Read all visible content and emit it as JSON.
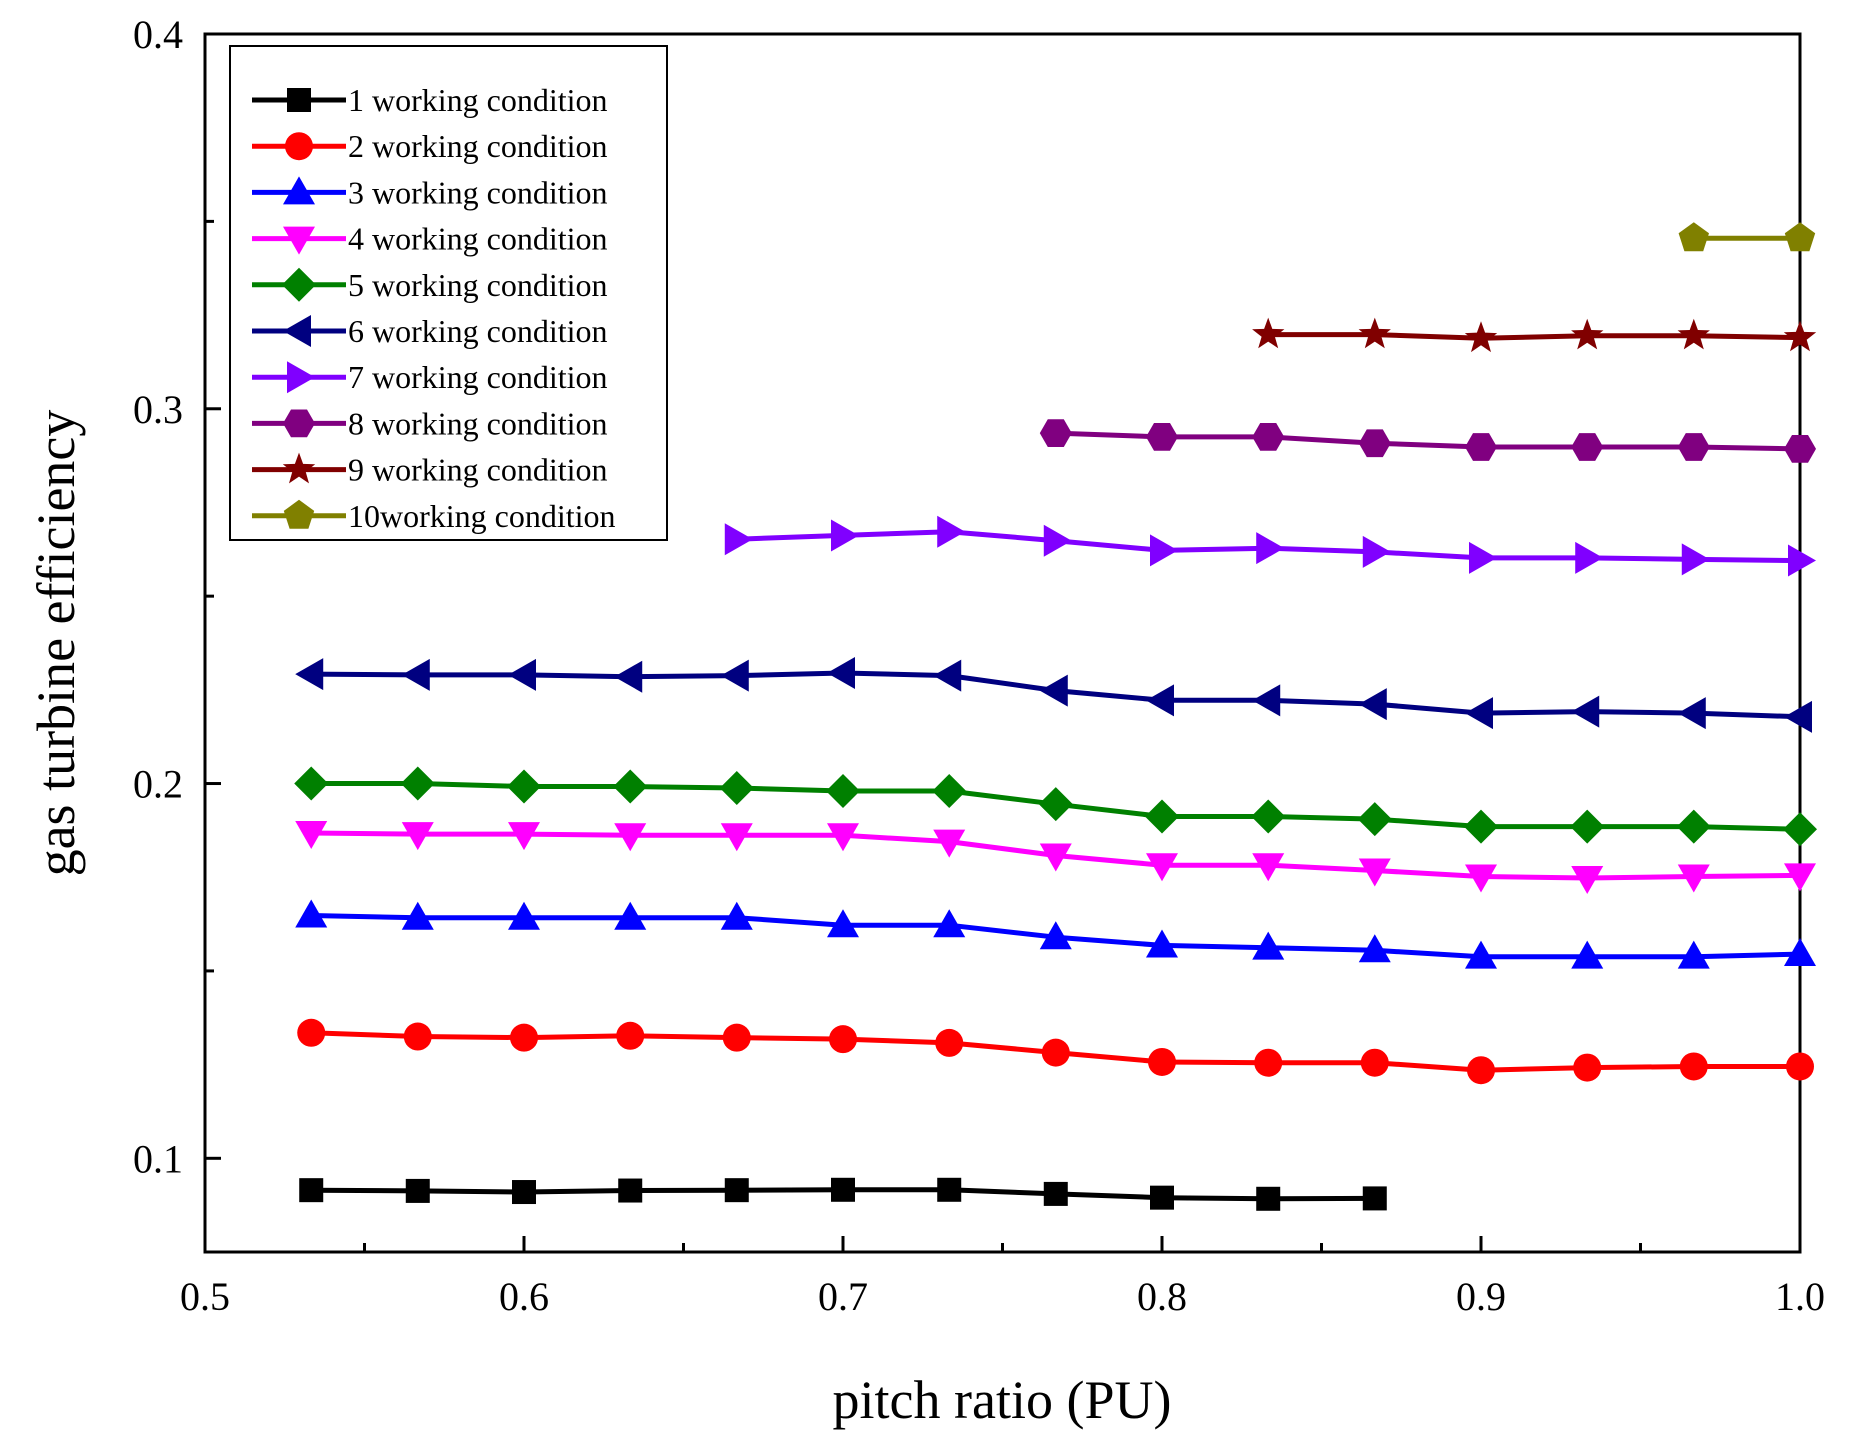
{
  "chart_data": {
    "type": "line",
    "title": "",
    "xlabel": "pitch ratio (PU)",
    "ylabel": "gas turbine efficiency",
    "xlim": [
      0.5,
      1.0
    ],
    "ylim": [
      0.075,
      0.4
    ],
    "x_ticks": [
      "0.5",
      "0.6",
      "0.7",
      "0.8",
      "0.9",
      "1.0"
    ],
    "y_ticks": [
      "0.1",
      "0.2",
      "0.3",
      "0.4"
    ],
    "grid": false,
    "legend_position": "top-left",
    "series": [
      {
        "name": "1 working condition",
        "color": "#000000",
        "marker": "square",
        "x": [
          0.5333,
          0.5667,
          0.6,
          0.6333,
          0.6667,
          0.7,
          0.7333,
          0.7667,
          0.8,
          0.8333,
          0.8667
        ],
        "y": [
          0.0915,
          0.0913,
          0.091,
          0.0914,
          0.0915,
          0.0916,
          0.0916,
          0.0905,
          0.0895,
          0.0892,
          0.0893
        ]
      },
      {
        "name": "2 working condition",
        "color": "#ff0000",
        "marker": "circle",
        "x": [
          0.5333,
          0.5667,
          0.6,
          0.6333,
          0.6667,
          0.7,
          0.7333,
          0.7667,
          0.8,
          0.8333,
          0.8667,
          0.9,
          0.9333,
          0.9667,
          1.0
        ],
        "y": [
          0.1335,
          0.1325,
          0.1322,
          0.1327,
          0.1322,
          0.1318,
          0.1308,
          0.1282,
          0.1257,
          0.1255,
          0.1255,
          0.1235,
          0.1242,
          0.1245,
          0.1245
        ]
      },
      {
        "name": "3 working condition",
        "color": "#0000ff",
        "marker": "triangle-up",
        "x": [
          0.5333,
          0.5667,
          0.6,
          0.6333,
          0.6667,
          0.7,
          0.7333,
          0.7667,
          0.8,
          0.8333,
          0.8667,
          0.9,
          0.9333,
          0.9667,
          1.0
        ],
        "y": [
          0.1648,
          0.1642,
          0.1642,
          0.1642,
          0.1642,
          0.1622,
          0.1622,
          0.159,
          0.1568,
          0.1562,
          0.1555,
          0.1538,
          0.1538,
          0.1538,
          0.1545
        ]
      },
      {
        "name": "4 working condition",
        "color": "#ff00ff",
        "marker": "triangle-down",
        "x": [
          0.5333,
          0.5667,
          0.6,
          0.6333,
          0.6667,
          0.7,
          0.7333,
          0.7667,
          0.8,
          0.8333,
          0.8667,
          0.9,
          0.9333,
          0.9667,
          1.0
        ],
        "y": [
          0.1868,
          0.1865,
          0.1865,
          0.1862,
          0.1862,
          0.1862,
          0.1845,
          0.1808,
          0.1782,
          0.1782,
          0.1768,
          0.1752,
          0.1748,
          0.1752,
          0.1755
        ]
      },
      {
        "name": "5 working condition",
        "color": "#008000",
        "marker": "diamond",
        "x": [
          0.5333,
          0.5667,
          0.6,
          0.6333,
          0.6667,
          0.7,
          0.7333,
          0.7667,
          0.8,
          0.8333,
          0.8667,
          0.9,
          0.9333,
          0.9667,
          1.0
        ],
        "y": [
          0.2,
          0.2,
          0.1992,
          0.1992,
          0.1988,
          0.198,
          0.198,
          0.1945,
          0.1912,
          0.1912,
          0.1905,
          0.1885,
          0.1885,
          0.1885,
          0.1878
        ]
      },
      {
        "name": "6 working condition",
        "color": "#000080",
        "marker": "triangle-left",
        "x": [
          0.5333,
          0.5667,
          0.6,
          0.6333,
          0.6667,
          0.7,
          0.7333,
          0.7667,
          0.8,
          0.8333,
          0.8667,
          0.9,
          0.9333,
          0.9667,
          1.0
        ],
        "y": [
          0.2292,
          0.229,
          0.229,
          0.2285,
          0.2288,
          0.2295,
          0.2288,
          0.2248,
          0.2222,
          0.2222,
          0.2212,
          0.2188,
          0.2192,
          0.2188,
          0.2178
        ]
      },
      {
        "name": "7 working condition",
        "color": "#8000ff",
        "marker": "triangle-right",
        "x": [
          0.6667,
          0.7,
          0.7333,
          0.7667,
          0.8,
          0.8333,
          0.8667,
          0.9,
          0.9333,
          0.9667,
          1.0
        ],
        "y": [
          0.2652,
          0.2662,
          0.2672,
          0.2648,
          0.2622,
          0.2628,
          0.2618,
          0.2602,
          0.2602,
          0.2598,
          0.2595
        ]
      },
      {
        "name": "8 working condition",
        "color": "#800080",
        "marker": "hexagon",
        "x": [
          0.7667,
          0.8,
          0.8333,
          0.8667,
          0.9,
          0.9333,
          0.9667,
          1.0
        ],
        "y": [
          0.2935,
          0.2925,
          0.2925,
          0.2908,
          0.2898,
          0.2898,
          0.2898,
          0.2893
        ]
      },
      {
        "name": "9 working condition",
        "color": "#800000",
        "marker": "star",
        "x": [
          0.8333,
          0.8667,
          0.9,
          0.9333,
          0.9667,
          1.0
        ],
        "y": [
          0.3198,
          0.3198,
          0.3188,
          0.3195,
          0.3195,
          0.319
        ]
      },
      {
        "name": "10working condition",
        "color": "#808000",
        "marker": "pentagon",
        "x": [
          0.9667,
          1.0
        ],
        "y": [
          0.3455,
          0.3455
        ]
      }
    ]
  }
}
